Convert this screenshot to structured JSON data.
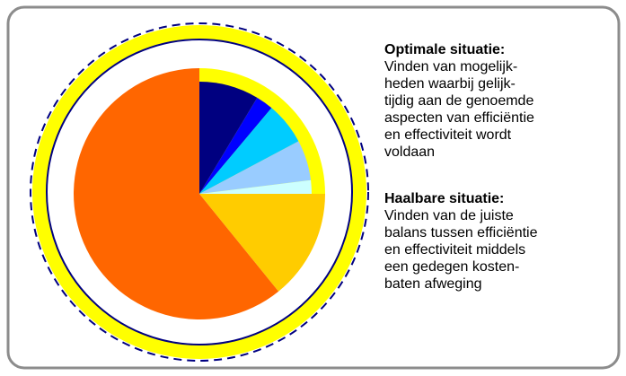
{
  "sections": [
    {
      "heading": "Optimale situatie:",
      "lines": [
        "Vinden van mogelijk-",
        "heden waarbij gelijk-",
        "tijdig aan de genoemde",
        "aspecten van efficiëntie",
        "en effectiviteit wordt",
        "voldaan"
      ]
    },
    {
      "heading": "Haalbare situatie:",
      "lines": [
        "Vinden van de juiste",
        "balans tussen efficiëntie",
        "en effectiviteit middels",
        "een gedegen kosten-",
        "baten afweging"
      ]
    }
  ]
}
